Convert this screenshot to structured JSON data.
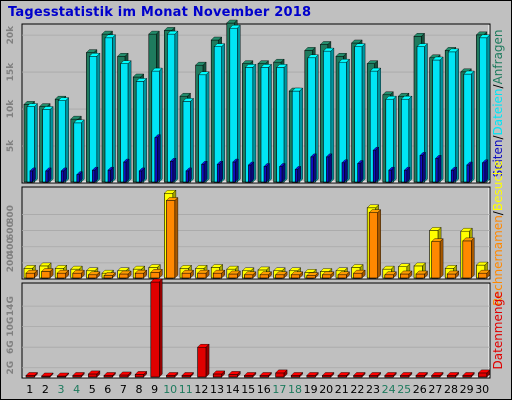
{
  "title": "Tagesstatistik im Monat November 2018",
  "colors": {
    "background": "#c0c0c0",
    "plot_background": "#c0c0c0",
    "title": "#0000cc",
    "anfragen": "#1e7b5e",
    "dateien": "#00e5f5",
    "seiten": "#1010c0",
    "besuche": "#ffff00",
    "rechner": "#ff8800",
    "datenmenge": "#e00000",
    "weekend": "#1e7b5e",
    "weekday": "#000000"
  },
  "chart_data": [
    {
      "type": "bar",
      "panel": "top",
      "right_label_parts": [
        "Anfragen",
        "/",
        "Dateien",
        "/",
        "Seiten"
      ],
      "y_ticks": [
        "5k",
        "10k",
        "15k",
        "20k"
      ],
      "ylim": [
        0,
        21500
      ],
      "grid": true,
      "categories": [
        "1",
        "2",
        "3",
        "4",
        "5",
        "6",
        "7",
        "8",
        "9",
        "10",
        "11",
        "12",
        "13",
        "14",
        "15",
        "16",
        "17",
        "18",
        "19",
        "20",
        "21",
        "22",
        "23",
        "24",
        "25",
        "26",
        "27",
        "28",
        "29",
        "30"
      ],
      "series": [
        {
          "name": "Anfragen",
          "values": [
            10500,
            10200,
            11200,
            8500,
            17500,
            20000,
            17000,
            14200,
            20000,
            20500,
            11600,
            15800,
            19200,
            21500,
            16000,
            16000,
            16200,
            12300,
            17800,
            18600,
            17000,
            18800,
            16000,
            11800,
            11600,
            19700,
            16800,
            17800,
            14900,
            19900
          ]
        },
        {
          "name": "Dateien",
          "values": [
            10200,
            9800,
            11000,
            8000,
            17000,
            19500,
            16000,
            13600,
            15000,
            20000,
            10900,
            14500,
            18300,
            20800,
            15500,
            15500,
            15500,
            12300,
            16800,
            17700,
            16200,
            18300,
            15000,
            11200,
            11200,
            18300,
            16500,
            17600,
            14600,
            19500
          ]
        },
        {
          "name": "Seiten",
          "values": [
            1500,
            1500,
            1500,
            1000,
            1600,
            1600,
            2700,
            1500,
            6000,
            2800,
            1500,
            2400,
            2400,
            2700,
            2300,
            2100,
            2100,
            1700,
            3400,
            3400,
            2600,
            2500,
            4300,
            1600,
            1600,
            3600,
            3200,
            1600,
            2300,
            2600
          ]
        }
      ]
    },
    {
      "type": "bar",
      "panel": "middle",
      "right_label_parts": [
        "Besuche",
        "/",
        "Rechnernamen"
      ],
      "y_ticks": [
        "200",
        "400",
        "600",
        "800"
      ],
      "ylim": [
        0,
        1140
      ],
      "grid": true,
      "categories": [
        "1",
        "2",
        "3",
        "4",
        "5",
        "6",
        "7",
        "8",
        "9",
        "10",
        "11",
        "12",
        "13",
        "14",
        "15",
        "16",
        "17",
        "18",
        "19",
        "20",
        "21",
        "22",
        "23",
        "24",
        "25",
        "26",
        "27",
        "28",
        "29",
        "30"
      ],
      "series": [
        {
          "name": "Besuche",
          "values": [
            120,
            150,
            120,
            110,
            90,
            60,
            90,
            110,
            130,
            1050,
            120,
            120,
            130,
            110,
            90,
            100,
            90,
            90,
            70,
            80,
            90,
            130,
            870,
            110,
            140,
            150,
            590,
            120,
            580,
            160
          ]
        },
        {
          "name": "Rechnernamen",
          "values": [
            60,
            80,
            60,
            60,
            40,
            30,
            50,
            60,
            70,
            960,
            60,
            60,
            60,
            50,
            40,
            40,
            40,
            40,
            30,
            40,
            40,
            60,
            810,
            40,
            50,
            50,
            450,
            50,
            460,
            60
          ]
        }
      ]
    },
    {
      "type": "bar",
      "panel": "bottom",
      "right_label": "Datenmenge",
      "y_ticks": [
        "2G",
        "6G",
        "10G",
        "14G"
      ],
      "ylim": [
        0,
        18.5
      ],
      "grid": true,
      "categories": [
        "1",
        "2",
        "3",
        "4",
        "5",
        "6",
        "7",
        "8",
        "9",
        "10",
        "11",
        "12",
        "13",
        "14",
        "15",
        "16",
        "17",
        "18",
        "19",
        "20",
        "21",
        "22",
        "23",
        "24",
        "25",
        "26",
        "27",
        "28",
        "29",
        "30"
      ],
      "weekend_days": [
        "3",
        "4",
        "10",
        "11",
        "17",
        "18",
        "24",
        "25"
      ],
      "series": [
        {
          "name": "Datenmenge",
          "values": [
            0.3,
            0.2,
            0.2,
            0.3,
            0.6,
            0.3,
            0.4,
            0.5,
            18.5,
            0.3,
            0.3,
            5.8,
            0.6,
            0.5,
            0.3,
            0.3,
            0.8,
            0.3,
            0.3,
            0.3,
            0.3,
            0.3,
            0.3,
            0.3,
            0.3,
            0.3,
            0.3,
            0.3,
            0.3,
            0.8
          ]
        }
      ]
    }
  ]
}
